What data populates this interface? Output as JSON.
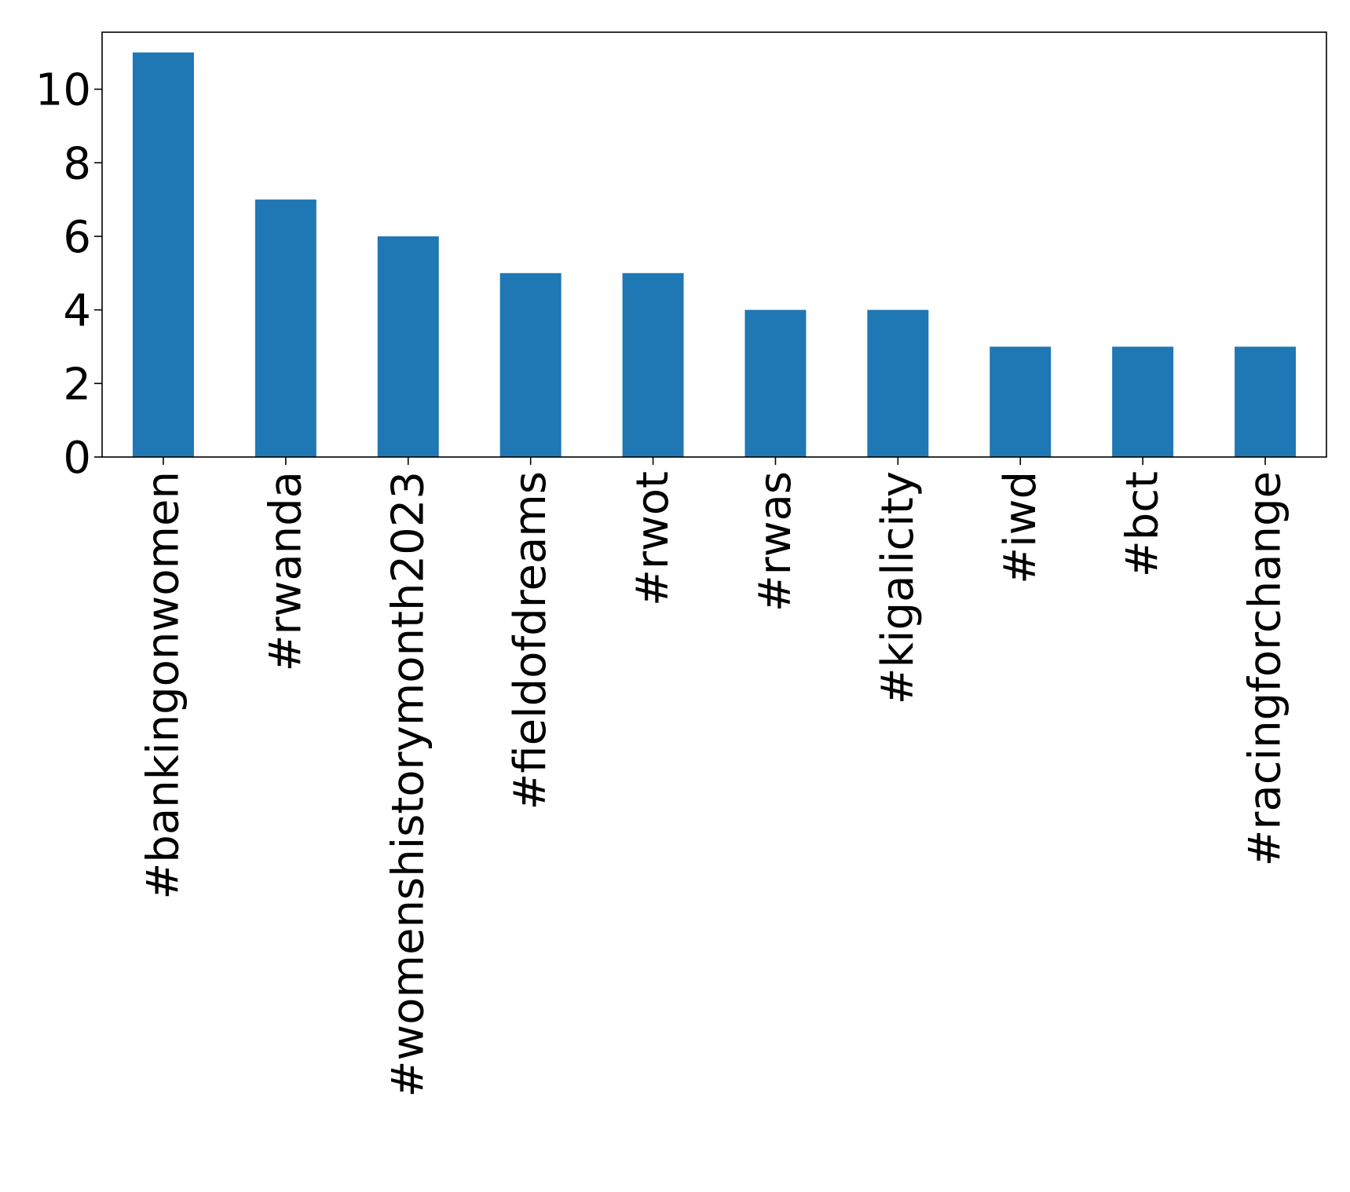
{
  "chart_data": {
    "type": "bar",
    "title": "",
    "xlabel": "",
    "ylabel": "",
    "categories": [
      "#bankingonwomen",
      "#rwanda",
      "#womenshistorymonth2023",
      "#fieldofdreams",
      "#rwot",
      "#rwas",
      "#kigalicity",
      "#iwd",
      "#bct",
      "#racingforchange"
    ],
    "values": [
      11,
      7,
      6,
      5,
      5,
      4,
      4,
      3,
      3,
      3
    ],
    "ylim": [
      0,
      11.55
    ],
    "yticks": [
      0,
      2,
      4,
      6,
      8,
      10
    ],
    "bar_color": "#1f77b4",
    "grid": false,
    "legend": "none"
  }
}
